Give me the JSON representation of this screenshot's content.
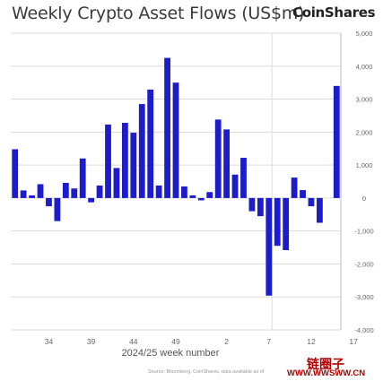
{
  "header": {
    "title": "Weekly Crypto Asset Flows (US$m)",
    "logo": "CoinShares"
  },
  "footer": {
    "xaxis_label": "2024/25 week number",
    "source": "Source: Bloomberg, CoinShares, data available as of",
    "watermark_cn": "链圈子",
    "watermark_url": "WWW.WWSWW.CN"
  },
  "colors": {
    "bar": "#1c1ccc",
    "grid": "#dcdcdc",
    "tick": "#666666"
  },
  "chart_data": {
    "type": "bar",
    "title": "Weekly Crypto Asset Flows (US$m)",
    "xlabel": "2024/25 week number",
    "ylabel": "",
    "ylim": [
      -4000,
      5000
    ],
    "yticks": [
      5000,
      4000,
      3000,
      2000,
      1000,
      0,
      -1000,
      -2000,
      -3000,
      -4000
    ],
    "ytick_labels": [
      "5,000",
      "4,000",
      "3,000",
      "2,000",
      "1,000",
      "0",
      "-1,000",
      "-2,000",
      "-3,000",
      "-4,000"
    ],
    "xtick_labels": [
      "34",
      "39",
      "44",
      "49",
      "2",
      "7",
      "12",
      "17"
    ],
    "xtick_bar_index": [
      4,
      9,
      14,
      19,
      25,
      30,
      35,
      40
    ],
    "divider_after_bar_index": 30,
    "grid": true,
    "axis_position": "right",
    "series": [
      {
        "values": [
          1480,
          230,
          80,
          420,
          -250,
          -700,
          460,
          290,
          1200,
          -130,
          380,
          2230,
          910,
          2280,
          1980,
          2850,
          3290,
          380,
          4250,
          3500,
          350,
          80,
          -70,
          180,
          2380,
          2080,
          710,
          1220,
          -400,
          -550,
          -2960,
          -1450,
          -1580,
          620,
          240,
          -250,
          -750,
          0,
          3400
        ]
      }
    ]
  }
}
